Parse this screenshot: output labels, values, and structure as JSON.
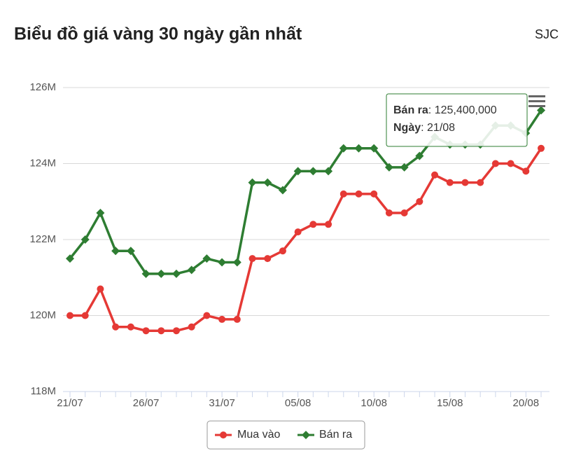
{
  "chart_data": {
    "type": "line",
    "title": "Biểu đồ giá vàng 30 ngày gần nhất",
    "source": "SJC",
    "categories": [
      "21/07",
      null,
      null,
      null,
      null,
      "26/07",
      null,
      null,
      null,
      null,
      "31/07",
      null,
      null,
      null,
      null,
      "05/08",
      null,
      null,
      null,
      null,
      "10/08",
      null,
      null,
      null,
      null,
      "15/08",
      null,
      null,
      null,
      null,
      "20/08",
      "21/08"
    ],
    "series": [
      {
        "name": "Mua vào",
        "color": "#e53935",
        "values": [
          120000000,
          120000000,
          120700000,
          119700000,
          119700000,
          119600000,
          119600000,
          119600000,
          119700000,
          120000000,
          119900000,
          119900000,
          121500000,
          121500000,
          121700000,
          122200000,
          122400000,
          122400000,
          123200000,
          123200000,
          123200000,
          122700000,
          122700000,
          123000000,
          123700000,
          123500000,
          123500000,
          123500000,
          124000000,
          124000000,
          123800000,
          124400000
        ]
      },
      {
        "name": "Bán ra",
        "color": "#2e7d32",
        "values": [
          121500000,
          122000000,
          122700000,
          121700000,
          121700000,
          121100000,
          121100000,
          121100000,
          121200000,
          121500000,
          121400000,
          121400000,
          123500000,
          123500000,
          123300000,
          123800000,
          123800000,
          123800000,
          124400000,
          124400000,
          124400000,
          123900000,
          123900000,
          124200000,
          124700000,
          124500000,
          124500000,
          124500000,
          125000000,
          125000000,
          124800000,
          125400000
        ]
      }
    ],
    "ylim": [
      118000000,
      126000000
    ],
    "yticks": [
      {
        "value": 118000000,
        "label": "118M"
      },
      {
        "value": 120000000,
        "label": "120M"
      },
      {
        "value": 122000000,
        "label": "122M"
      },
      {
        "value": 124000000,
        "label": "124M"
      },
      {
        "value": 126000000,
        "label": "126M"
      }
    ],
    "grid": true,
    "legend": "bottom",
    "tooltip": {
      "value_label": "125,400,000",
      "date_title": "Ngày"
    }
  }
}
